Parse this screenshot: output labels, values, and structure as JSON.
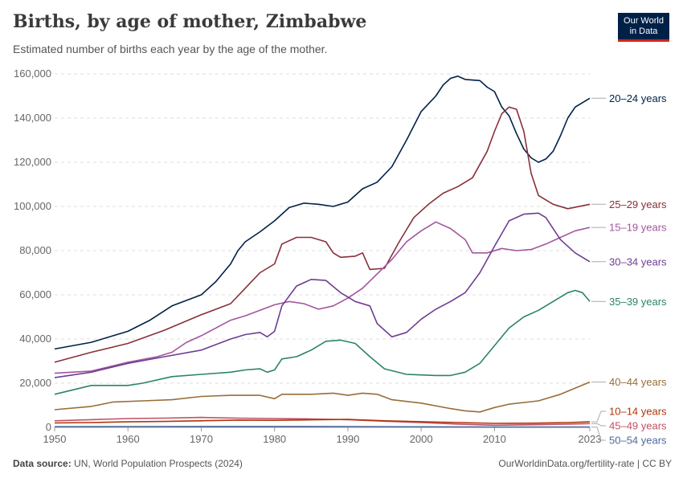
{
  "header": {
    "title": "Births, by age of mother, Zimbabwe",
    "subtitle": "Estimated number of births each year by the age of the mother."
  },
  "logo": {
    "line1": "Our World",
    "line2": "in Data"
  },
  "footer": {
    "source_label": "Data source:",
    "source_text": "UN, World Population Prospects (2024)",
    "url": "OurWorldinData.org/fertility-rate | CC BY"
  },
  "chart_data": {
    "type": "line",
    "title": "Births, by age of mother, Zimbabwe",
    "xlabel": "",
    "ylabel": "",
    "xlim": [
      1950,
      2023
    ],
    "ylim": [
      0,
      160000
    ],
    "x_ticks": [
      1950,
      1960,
      1970,
      1980,
      1990,
      2000,
      2010,
      2023
    ],
    "y_ticks": [
      0,
      20000,
      40000,
      60000,
      80000,
      100000,
      120000,
      140000,
      160000
    ],
    "y_tick_labels": [
      "0",
      "20,000",
      "40,000",
      "60,000",
      "80,000",
      "100,000",
      "120,000",
      "140,000",
      "160,000"
    ],
    "grid": "horizontal dashed",
    "legend": "right-end labels",
    "series": [
      {
        "name": "20–24 years",
        "color": "#002147",
        "points": [
          [
            1950,
            35500
          ],
          [
            1955,
            38500
          ],
          [
            1960,
            43500
          ],
          [
            1963,
            48500
          ],
          [
            1966,
            55000
          ],
          [
            1968,
            57500
          ],
          [
            1970,
            60000
          ],
          [
            1972,
            66000
          ],
          [
            1974,
            74000
          ],
          [
            1975,
            80000
          ],
          [
            1976,
            84000
          ],
          [
            1978,
            88500
          ],
          [
            1980,
            93500
          ],
          [
            1982,
            99500
          ],
          [
            1984,
            101500
          ],
          [
            1986,
            101000
          ],
          [
            1988,
            100000
          ],
          [
            1990,
            102000
          ],
          [
            1992,
            108000
          ],
          [
            1994,
            111000
          ],
          [
            1996,
            118000
          ],
          [
            1998,
            130000
          ],
          [
            2000,
            143000
          ],
          [
            2002,
            150000
          ],
          [
            2003,
            155000
          ],
          [
            2004,
            158000
          ],
          [
            2005,
            159000
          ],
          [
            2006,
            157500
          ],
          [
            2008,
            157000
          ],
          [
            2009,
            154000
          ],
          [
            2010,
            152000
          ],
          [
            2011,
            145000
          ],
          [
            2012,
            141000
          ],
          [
            2013,
            133000
          ],
          [
            2014,
            126000
          ],
          [
            2015,
            122000
          ],
          [
            2016,
            120000
          ],
          [
            2017,
            121500
          ],
          [
            2018,
            125000
          ],
          [
            2019,
            132000
          ],
          [
            2020,
            140000
          ],
          [
            2021,
            145000
          ],
          [
            2023,
            149000
          ]
        ]
      },
      {
        "name": "25–29 years",
        "color": "#883039",
        "points": [
          [
            1950,
            29500
          ],
          [
            1955,
            34000
          ],
          [
            1960,
            38000
          ],
          [
            1965,
            44000
          ],
          [
            1970,
            51000
          ],
          [
            1974,
            56000
          ],
          [
            1976,
            63000
          ],
          [
            1978,
            70000
          ],
          [
            1980,
            74000
          ],
          [
            1981,
            83000
          ],
          [
            1983,
            86000
          ],
          [
            1985,
            86000
          ],
          [
            1987,
            84000
          ],
          [
            1988,
            79000
          ],
          [
            1989,
            77000
          ],
          [
            1991,
            77500
          ],
          [
            1992,
            79000
          ],
          [
            1993,
            71500
          ],
          [
            1995,
            72000
          ],
          [
            1997,
            84000
          ],
          [
            1999,
            95000
          ],
          [
            2001,
            101000
          ],
          [
            2003,
            106000
          ],
          [
            2005,
            109000
          ],
          [
            2007,
            113000
          ],
          [
            2009,
            125000
          ],
          [
            2010,
            134000
          ],
          [
            2011,
            142000
          ],
          [
            2012,
            145000
          ],
          [
            2013,
            144000
          ],
          [
            2014,
            134000
          ],
          [
            2015,
            115000
          ],
          [
            2016,
            105000
          ],
          [
            2018,
            101000
          ],
          [
            2020,
            99000
          ],
          [
            2023,
            101000
          ]
        ]
      },
      {
        "name": "15–19 years",
        "color": "#a2559c",
        "points": [
          [
            1950,
            24500
          ],
          [
            1955,
            25500
          ],
          [
            1960,
            29500
          ],
          [
            1964,
            32000
          ],
          [
            1966,
            34000
          ],
          [
            1968,
            38500
          ],
          [
            1970,
            41500
          ],
          [
            1972,
            45000
          ],
          [
            1974,
            48500
          ],
          [
            1976,
            50500
          ],
          [
            1978,
            53000
          ],
          [
            1980,
            55500
          ],
          [
            1982,
            57000
          ],
          [
            1984,
            56000
          ],
          [
            1986,
            53500
          ],
          [
            1988,
            55000
          ],
          [
            1990,
            58500
          ],
          [
            1992,
            63000
          ],
          [
            1994,
            69500
          ],
          [
            1996,
            76000
          ],
          [
            1998,
            84000
          ],
          [
            2000,
            89000
          ],
          [
            2002,
            93000
          ],
          [
            2004,
            90000
          ],
          [
            2006,
            85000
          ],
          [
            2007,
            79000
          ],
          [
            2009,
            79000
          ],
          [
            2011,
            81000
          ],
          [
            2013,
            80000
          ],
          [
            2015,
            80500
          ],
          [
            2017,
            83000
          ],
          [
            2019,
            86000
          ],
          [
            2021,
            89000
          ],
          [
            2023,
            90500
          ]
        ]
      },
      {
        "name": "30–34 years",
        "color": "#6d3e91",
        "points": [
          [
            1950,
            22500
          ],
          [
            1955,
            25000
          ],
          [
            1960,
            29000
          ],
          [
            1965,
            32000
          ],
          [
            1970,
            35000
          ],
          [
            1974,
            40000
          ],
          [
            1976,
            42000
          ],
          [
            1978,
            43000
          ],
          [
            1979,
            41000
          ],
          [
            1980,
            43500
          ],
          [
            1981,
            55000
          ],
          [
            1983,
            64000
          ],
          [
            1985,
            67000
          ],
          [
            1987,
            66500
          ],
          [
            1989,
            61000
          ],
          [
            1991,
            57000
          ],
          [
            1993,
            55000
          ],
          [
            1994,
            47000
          ],
          [
            1995,
            44000
          ],
          [
            1996,
            41000
          ],
          [
            1998,
            43000
          ],
          [
            2000,
            49000
          ],
          [
            2002,
            53500
          ],
          [
            2004,
            57000
          ],
          [
            2006,
            61000
          ],
          [
            2008,
            70000
          ],
          [
            2010,
            82000
          ],
          [
            2012,
            93500
          ],
          [
            2014,
            96500
          ],
          [
            2016,
            97000
          ],
          [
            2017,
            95000
          ],
          [
            2019,
            85000
          ],
          [
            2021,
            79000
          ],
          [
            2023,
            75000
          ]
        ]
      },
      {
        "name": "35–39 years",
        "color": "#2c8465",
        "points": [
          [
            1950,
            15000
          ],
          [
            1955,
            19000
          ],
          [
            1960,
            19000
          ],
          [
            1962,
            20000
          ],
          [
            1966,
            23000
          ],
          [
            1970,
            24000
          ],
          [
            1974,
            25000
          ],
          [
            1976,
            26000
          ],
          [
            1978,
            26500
          ],
          [
            1979,
            25000
          ],
          [
            1980,
            26000
          ],
          [
            1981,
            31000
          ],
          [
            1983,
            32000
          ],
          [
            1985,
            35000
          ],
          [
            1987,
            39000
          ],
          [
            1989,
            39500
          ],
          [
            1991,
            38000
          ],
          [
            1993,
            32000
          ],
          [
            1995,
            26500
          ],
          [
            1998,
            24000
          ],
          [
            2002,
            23500
          ],
          [
            2004,
            23500
          ],
          [
            2006,
            25000
          ],
          [
            2008,
            29000
          ],
          [
            2010,
            37000
          ],
          [
            2012,
            45000
          ],
          [
            2014,
            50000
          ],
          [
            2016,
            53000
          ],
          [
            2018,
            57000
          ],
          [
            2020,
            61000
          ],
          [
            2021,
            62000
          ],
          [
            2022,
            61000
          ],
          [
            2023,
            57000
          ]
        ]
      },
      {
        "name": "40–44 years",
        "color": "#996d39",
        "points": [
          [
            1950,
            8000
          ],
          [
            1955,
            9500
          ],
          [
            1958,
            11500
          ],
          [
            1962,
            12000
          ],
          [
            1966,
            12500
          ],
          [
            1970,
            14000
          ],
          [
            1974,
            14500
          ],
          [
            1978,
            14500
          ],
          [
            1980,
            13000
          ],
          [
            1981,
            15000
          ],
          [
            1985,
            15000
          ],
          [
            1988,
            15500
          ],
          [
            1990,
            14500
          ],
          [
            1992,
            15500
          ],
          [
            1994,
            15000
          ],
          [
            1996,
            12500
          ],
          [
            2000,
            11000
          ],
          [
            2004,
            8500
          ],
          [
            2006,
            7500
          ],
          [
            2008,
            7000
          ],
          [
            2010,
            9000
          ],
          [
            2012,
            10500
          ],
          [
            2016,
            12000
          ],
          [
            2019,
            15000
          ],
          [
            2023,
            20500
          ]
        ]
      },
      {
        "name": "45–49 years",
        "color": "#c15065",
        "points": [
          [
            1950,
            3000
          ],
          [
            1955,
            3500
          ],
          [
            1960,
            4000
          ],
          [
            1965,
            4200
          ],
          [
            1970,
            4500
          ],
          [
            1975,
            4200
          ],
          [
            1980,
            4000
          ],
          [
            1985,
            3800
          ],
          [
            1990,
            3500
          ],
          [
            1995,
            2800
          ],
          [
            2000,
            2200
          ],
          [
            2005,
            1500
          ],
          [
            2010,
            1000
          ],
          [
            2015,
            1200
          ],
          [
            2020,
            1500
          ],
          [
            2023,
            1700
          ]
        ]
      },
      {
        "name": "10–14 years",
        "color": "#b13507",
        "points": [
          [
            1950,
            2000
          ],
          [
            1955,
            2200
          ],
          [
            1960,
            2500
          ],
          [
            1965,
            2700
          ],
          [
            1970,
            3000
          ],
          [
            1975,
            3300
          ],
          [
            1980,
            3200
          ],
          [
            1985,
            3400
          ],
          [
            1990,
            3600
          ],
          [
            1995,
            3000
          ],
          [
            2000,
            2600
          ],
          [
            2005,
            2200
          ],
          [
            2010,
            1800
          ],
          [
            2015,
            1900
          ],
          [
            2020,
            2200
          ],
          [
            2023,
            2500
          ]
        ]
      },
      {
        "name": "50–54 years",
        "color": "#4c6a9c",
        "points": [
          [
            1950,
            300
          ],
          [
            1960,
            350
          ],
          [
            1970,
            400
          ],
          [
            1980,
            400
          ],
          [
            1990,
            350
          ],
          [
            2000,
            250
          ],
          [
            2010,
            150
          ],
          [
            2023,
            150
          ]
        ]
      }
    ]
  }
}
